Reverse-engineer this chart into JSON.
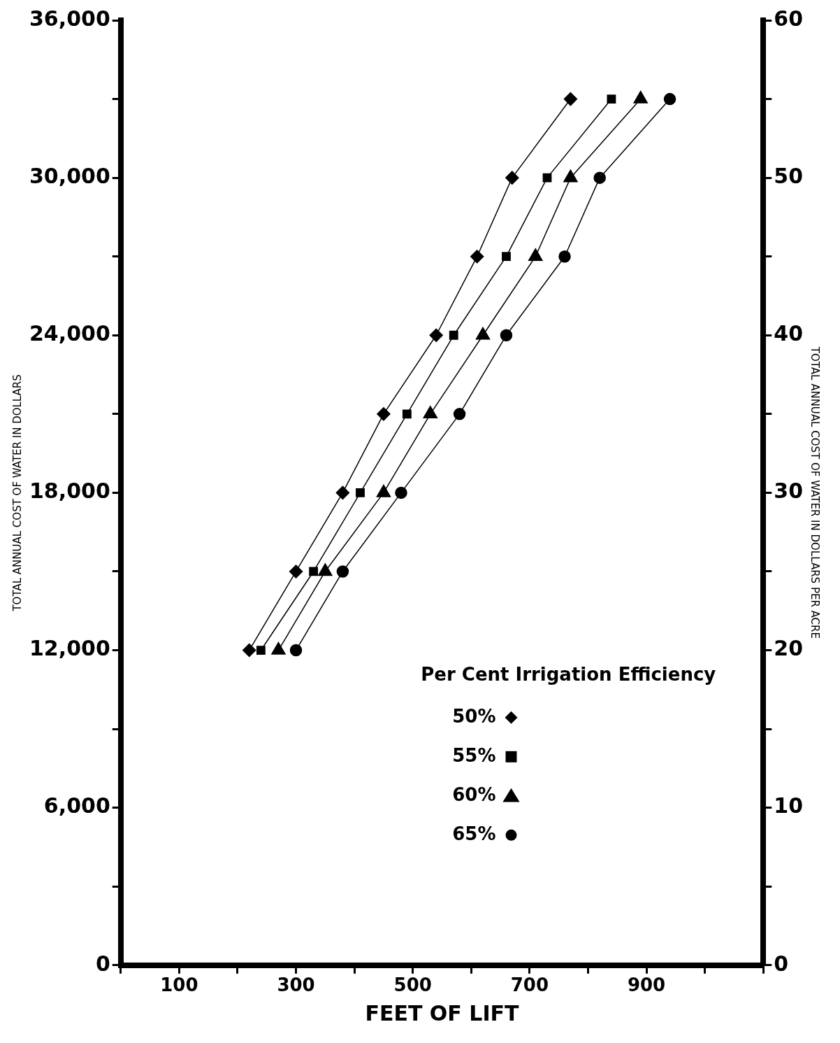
{
  "chart_data": {
    "type": "line",
    "xlabel": "FEET OF LIFT",
    "ylabel": "TOTAL ANNUAL COST OF WATER IN DOLLARS",
    "y2label": "TOTAL ANNUAL COST OF WATER IN DOLLARS PER ACRE",
    "legend_title": "Per Cent Irrigation Efficiency",
    "legend": "bottom right",
    "grid": false,
    "xlim": [
      0,
      1100
    ],
    "xticks": [
      {
        "value": 0,
        "label": null
      },
      100,
      {
        "value": 200,
        "label": null
      },
      300,
      {
        "value": 400,
        "label": null
      },
      500,
      {
        "value": 600,
        "label": null
      },
      700,
      {
        "value": 800,
        "label": null
      },
      900,
      {
        "value": 1000,
        "label": null
      },
      {
        "value": 1100,
        "label": null
      }
    ],
    "ylim": [
      0,
      36000
    ],
    "yticks": [
      0,
      {
        "value": 3000,
        "label": null
      },
      {
        "value": 6000,
        "label": "6,000"
      },
      {
        "value": 9000,
        "label": null
      },
      {
        "value": 12000,
        "label": "12,000"
      },
      {
        "value": 15000,
        "label": null
      },
      {
        "value": 18000,
        "label": "18,000"
      },
      {
        "value": 21000,
        "label": null
      },
      {
        "value": 24000,
        "label": "24,000"
      },
      {
        "value": 27000,
        "label": null
      },
      {
        "value": 30000,
        "label": "30,000"
      },
      {
        "value": 33000,
        "label": null
      },
      {
        "value": 36000,
        "label": "36,000"
      }
    ],
    "y2lim": [
      0,
      60
    ],
    "y2ticks": [
      0,
      {
        "value": 5,
        "label": null
      },
      10,
      {
        "value": 15,
        "label": null
      },
      20,
      {
        "value": 25,
        "label": null
      },
      30,
      {
        "value": 35,
        "label": null
      },
      40,
      {
        "value": 45,
        "label": null
      },
      50,
      {
        "value": 55,
        "label": null
      },
      60
    ],
    "series": [
      {
        "name": "50%",
        "color": "#000000",
        "marker": "diamond",
        "x": [
          220,
          300,
          380,
          450,
          540,
          610,
          670,
          770
        ],
        "values": [
          12000,
          15000,
          18000,
          21000,
          24000,
          27000,
          30000,
          33000
        ]
      },
      {
        "name": "55%",
        "color": "#000000",
        "marker": "square",
        "x": [
          240,
          330,
          410,
          490,
          570,
          660,
          730,
          840
        ],
        "values": [
          12000,
          15000,
          18000,
          21000,
          24000,
          27000,
          30000,
          33000
        ]
      },
      {
        "name": "60%",
        "color": "#000000",
        "marker": "triangle",
        "x": [
          270,
          350,
          450,
          530,
          620,
          710,
          770,
          890
        ],
        "values": [
          12000,
          15000,
          18000,
          21000,
          24000,
          27000,
          30000,
          33000
        ]
      },
      {
        "name": "65%",
        "color": "#000000",
        "marker": "circle",
        "x": [
          300,
          380,
          480,
          580,
          660,
          760,
          820,
          940
        ],
        "values": [
          12000,
          15000,
          18000,
          21000,
          24000,
          27000,
          30000,
          33000
        ]
      }
    ]
  }
}
